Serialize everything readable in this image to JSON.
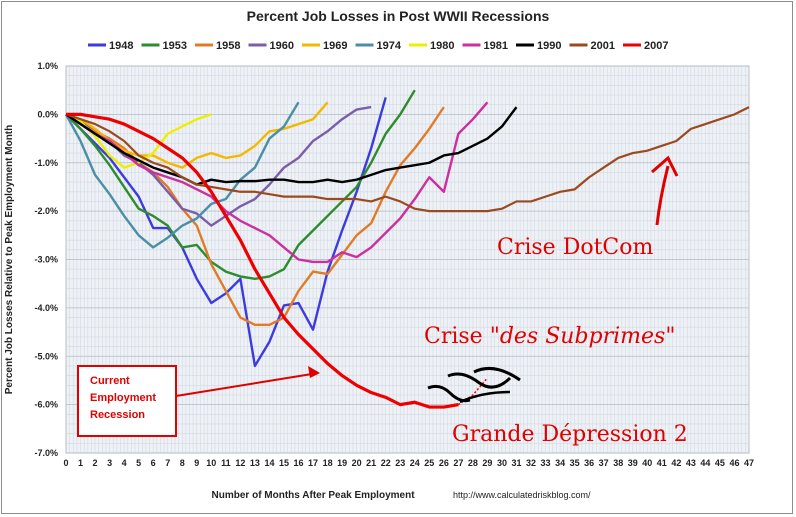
{
  "chart_data": {
    "type": "line",
    "title": "Percent Job Losses in Post WWII Recessions",
    "xlabel": "Number of Months After Peak Employment",
    "ylabel": "Percent Job Losses Relative to Peak Employment Month",
    "source": "http://www.calculatedriskblog.com/",
    "xlim": [
      0,
      47
    ],
    "ylim": [
      -7.0,
      1.0
    ],
    "grid": true,
    "legend_position": "top",
    "x_ticks": [
      "0",
      "1",
      "2",
      "3",
      "4",
      "5",
      "6",
      "7",
      "8",
      "9",
      "10",
      "11",
      "12",
      "13",
      "14",
      "15",
      "16",
      "17",
      "18",
      "19",
      "20",
      "21",
      "22",
      "23",
      "24",
      "25",
      "26",
      "27",
      "28",
      "29",
      "30",
      "31",
      "32",
      "33",
      "34",
      "35",
      "36",
      "37",
      "38",
      "39",
      "40",
      "41",
      "42",
      "43",
      "44",
      "45",
      "46",
      "47"
    ],
    "y_ticks": [
      "1.0%",
      "0.0%",
      "-1.0%",
      "-2.0%",
      "-3.0%",
      "-4.0%",
      "-5.0%",
      "-6.0%",
      "-7.0%"
    ],
    "series": [
      {
        "name": "1948",
        "color": "#3b3bdf",
        "values": [
          0,
          -0.3,
          -0.6,
          -0.9,
          -1.3,
          -1.7,
          -2.35,
          -2.35,
          -2.75,
          -3.4,
          -3.9,
          -3.7,
          -3.4,
          -5.2,
          -4.7,
          -3.95,
          -3.9,
          -4.45,
          -3.25,
          -2.4,
          -1.6,
          -0.7,
          0.35
        ]
      },
      {
        "name": "1953",
        "color": "#2e8b2e",
        "values": [
          0,
          -0.3,
          -0.65,
          -1.05,
          -1.5,
          -1.95,
          -2.1,
          -2.3,
          -2.75,
          -2.7,
          -3.05,
          -3.25,
          -3.35,
          -3.4,
          -3.35,
          -3.2,
          -2.7,
          -2.4,
          -2.1,
          -1.8,
          -1.5,
          -1.0,
          -0.4,
          0,
          0.5
        ]
      },
      {
        "name": "1958",
        "color": "#e07b28",
        "values": [
          0,
          -0.2,
          -0.35,
          -0.5,
          -0.7,
          -1.0,
          -1.2,
          -1.5,
          -1.95,
          -2.3,
          -3.1,
          -3.65,
          -4.2,
          -4.35,
          -4.35,
          -4.2,
          -3.65,
          -3.25,
          -3.3,
          -2.9,
          -2.5,
          -2.25,
          -1.6,
          -1.05,
          -0.7,
          -0.3,
          0.15
        ]
      },
      {
        "name": "1960",
        "color": "#7b5ea7",
        "values": [
          0,
          -0.15,
          -0.3,
          -0.55,
          -0.85,
          -1.0,
          -1.25,
          -1.6,
          -1.95,
          -2.05,
          -2.3,
          -2.1,
          -1.9,
          -1.75,
          -1.45,
          -1.1,
          -0.9,
          -0.55,
          -0.35,
          -0.1,
          0.1,
          0.15
        ]
      },
      {
        "name": "1969",
        "color": "#f5b800",
        "values": [
          0,
          -0.1,
          -0.3,
          -0.55,
          -0.75,
          -0.85,
          -0.85,
          -1.0,
          -1.1,
          -0.9,
          -0.8,
          -0.9,
          -0.85,
          -0.65,
          -0.35,
          -0.3,
          -0.2,
          -0.1,
          0.25
        ]
      },
      {
        "name": "1974",
        "color": "#4a8fa6",
        "values": [
          0,
          -0.55,
          -1.25,
          -1.65,
          -2.1,
          -2.5,
          -2.75,
          -2.55,
          -2.3,
          -2.15,
          -1.85,
          -1.75,
          -1.35,
          -1.1,
          -0.5,
          -0.25,
          0.25
        ]
      },
      {
        "name": "1980",
        "color": "#eeee00",
        "values": [
          0,
          -0.15,
          -0.45,
          -0.85,
          -1.1,
          -1.0,
          -0.8,
          -0.4,
          -0.25,
          -0.1,
          0
        ]
      },
      {
        "name": "1981",
        "color": "#cc2fa0",
        "values": [
          0,
          -0.2,
          -0.4,
          -0.55,
          -0.8,
          -1.05,
          -1.2,
          -1.3,
          -1.4,
          -1.55,
          -1.7,
          -2.0,
          -2.2,
          -2.35,
          -2.5,
          -2.75,
          -3.0,
          -3.05,
          -3.05,
          -2.85,
          -2.95,
          -2.75,
          -2.45,
          -2.15,
          -1.75,
          -1.3,
          -1.6,
          -0.4,
          -0.1,
          0.25
        ]
      },
      {
        "name": "1990",
        "color": "#000000",
        "values": [
          0,
          -0.2,
          -0.4,
          -0.6,
          -0.8,
          -0.95,
          -1.1,
          -1.2,
          -1.3,
          -1.45,
          -1.35,
          -1.4,
          -1.38,
          -1.38,
          -1.35,
          -1.35,
          -1.4,
          -1.4,
          -1.35,
          -1.4,
          -1.35,
          -1.25,
          -1.15,
          -1.1,
          -1.05,
          -1.0,
          -0.85,
          -0.8,
          -0.65,
          -0.5,
          -0.25,
          0.15
        ]
      },
      {
        "name": "2001",
        "color": "#9b4a1e",
        "values": [
          0,
          -0.1,
          -0.2,
          -0.35,
          -0.55,
          -0.85,
          -1.0,
          -1.1,
          -1.3,
          -1.45,
          -1.5,
          -1.55,
          -1.6,
          -1.6,
          -1.65,
          -1.7,
          -1.7,
          -1.7,
          -1.75,
          -1.75,
          -1.75,
          -1.8,
          -1.7,
          -1.8,
          -1.95,
          -2.0,
          -2.0,
          -2.0,
          -2.0,
          -2.0,
          -1.95,
          -1.8,
          -1.8,
          -1.7,
          -1.6,
          -1.55,
          -1.3,
          -1.1,
          -0.9,
          -0.8,
          -0.75,
          -0.65,
          -0.55,
          -0.3,
          -0.2,
          -0.1,
          0,
          0.15
        ]
      },
      {
        "name": "2007",
        "color": "#ee0000",
        "values": [
          0,
          0,
          -0.05,
          -0.1,
          -0.2,
          -0.35,
          -0.5,
          -0.7,
          -0.9,
          -1.2,
          -1.6,
          -2.1,
          -2.6,
          -3.2,
          -3.7,
          -4.2,
          -4.55,
          -4.85,
          -5.15,
          -5.4,
          -5.6,
          -5.75,
          -5.85,
          -6.0,
          -5.95,
          -6.05,
          -6.05,
          -6.0
        ]
      }
    ]
  },
  "callout": {
    "label": "Current Employment Recession",
    "color": "#e00000"
  },
  "annotations": {
    "dotcom": "Crise DotCom",
    "subprimes_prefix": "Crise ",
    "subprimes_italic": "\"des Subprimes\"",
    "depression": "Grande Dépression 2"
  }
}
